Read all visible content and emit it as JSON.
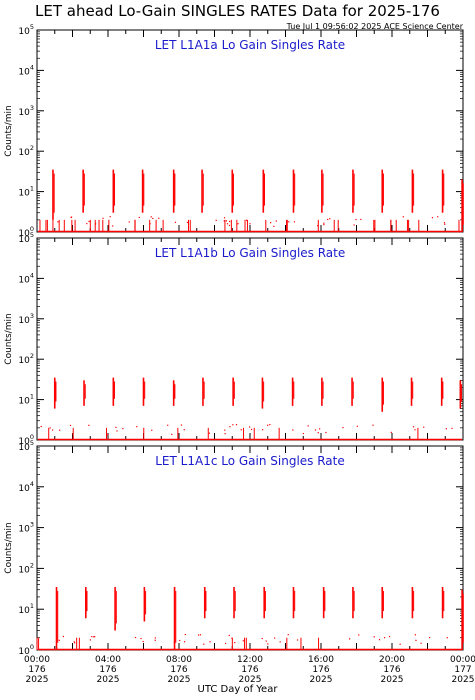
{
  "header": {
    "title": "LET ahead Lo-Gain SINGLES RATES Data for 2025-176",
    "timestamp": "Tue Jul  1 09:56:02 2025 ACE Science Center"
  },
  "x_axis_title": "UTC Day of Year",
  "chart_data": [
    {
      "type": "line",
      "title": "LET L1A1a Lo Gain Singles Rate",
      "ylabel": "Counts/min",
      "yscale": "log",
      "ylim": [
        1,
        100000
      ],
      "yticks": [
        1,
        10,
        100,
        1000,
        10000,
        100000
      ],
      "xlim": [
        0,
        24
      ],
      "x_units": "hours UTC",
      "color": "#ff0000",
      "spikes": [
        {
          "x": 0.9,
          "low": 2,
          "high": 35
        },
        {
          "x": 2.6,
          "low": 3,
          "high": 35
        },
        {
          "x": 4.3,
          "low": 3,
          "high": 35
        },
        {
          "x": 5.95,
          "low": 3,
          "high": 35
        },
        {
          "x": 7.7,
          "low": 3,
          "high": 35
        },
        {
          "x": 9.3,
          "low": 3,
          "high": 35
        },
        {
          "x": 11.0,
          "low": 3,
          "high": 35
        },
        {
          "x": 12.75,
          "low": 3,
          "high": 35
        },
        {
          "x": 14.45,
          "low": 3,
          "high": 35
        },
        {
          "x": 16.05,
          "low": 3,
          "high": 35
        },
        {
          "x": 17.8,
          "low": 3,
          "high": 35
        },
        {
          "x": 19.45,
          "low": 3,
          "high": 35
        },
        {
          "x": 21.15,
          "low": 3,
          "high": 35
        },
        {
          "x": 22.85,
          "low": 3,
          "high": 35
        },
        {
          "x": 23.95,
          "low": 1,
          "high": 20
        }
      ],
      "background_level": 1
    },
    {
      "type": "line",
      "title": "LET L1A1b Lo Gain Singles Rate",
      "ylabel": "Counts/min",
      "yscale": "log",
      "ylim": [
        1,
        100000
      ],
      "yticks": [
        1,
        10,
        100,
        1000,
        10000,
        100000
      ],
      "xlim": [
        0,
        24
      ],
      "x_units": "hours UTC",
      "color": "#ff0000",
      "spikes": [
        {
          "x": 1.0,
          "low": 6,
          "high": 35
        },
        {
          "x": 2.65,
          "low": 7,
          "high": 30
        },
        {
          "x": 4.3,
          "low": 7,
          "high": 35
        },
        {
          "x": 6.0,
          "low": 7,
          "high": 35
        },
        {
          "x": 7.7,
          "low": 7,
          "high": 30
        },
        {
          "x": 9.35,
          "low": 7,
          "high": 35
        },
        {
          "x": 11.05,
          "low": 7,
          "high": 35
        },
        {
          "x": 12.7,
          "low": 6,
          "high": 35
        },
        {
          "x": 14.4,
          "low": 7,
          "high": 35
        },
        {
          "x": 16.05,
          "low": 7,
          "high": 35
        },
        {
          "x": 17.75,
          "low": 7,
          "high": 35
        },
        {
          "x": 19.45,
          "low": 5,
          "high": 35
        },
        {
          "x": 21.1,
          "low": 7,
          "high": 35
        },
        {
          "x": 22.8,
          "low": 7,
          "high": 35
        },
        {
          "x": 23.85,
          "low": 6,
          "high": 30
        }
      ],
      "background_level": 1
    },
    {
      "type": "line",
      "title": "LET L1A1c Lo Gain Singles Rate",
      "ylabel": "Counts/min",
      "yscale": "log",
      "ylim": [
        1,
        100000
      ],
      "yticks": [
        1,
        10,
        100,
        1000,
        10000,
        100000
      ],
      "xlim": [
        0,
        24
      ],
      "x_units": "hours UTC",
      "color": "#ff0000",
      "x_tick_labels": [
        [
          "00:00",
          "176",
          "2025"
        ],
        [
          "04:00",
          "176",
          "2025"
        ],
        [
          "08:00",
          "176",
          "2025"
        ],
        [
          "12:00",
          "176",
          "2025"
        ],
        [
          "16:00",
          "176",
          "2025"
        ],
        [
          "20:00",
          "176",
          "2025"
        ],
        [
          "00:00",
          "177",
          "2025"
        ]
      ],
      "x_tick_positions": [
        0,
        4,
        8,
        12,
        16,
        20,
        24
      ],
      "spikes": [
        {
          "x": 1.1,
          "low": 1,
          "high": 35
        },
        {
          "x": 2.75,
          "low": 6,
          "high": 35
        },
        {
          "x": 4.4,
          "low": 3,
          "high": 35
        },
        {
          "x": 6.05,
          "low": 5,
          "high": 35
        },
        {
          "x": 7.75,
          "low": 1,
          "high": 35
        },
        {
          "x": 9.45,
          "low": 6,
          "high": 35
        },
        {
          "x": 11.1,
          "low": 6,
          "high": 35
        },
        {
          "x": 12.8,
          "low": 6,
          "high": 35
        },
        {
          "x": 14.45,
          "low": 6,
          "high": 35
        },
        {
          "x": 16.15,
          "low": 6,
          "high": 35
        },
        {
          "x": 17.8,
          "low": 6,
          "high": 35
        },
        {
          "x": 19.45,
          "low": 6,
          "high": 35
        },
        {
          "x": 21.15,
          "low": 6,
          "high": 35
        },
        {
          "x": 22.85,
          "low": 6,
          "high": 35
        },
        {
          "x": 23.95,
          "low": 1,
          "high": 30
        }
      ],
      "background_level": 1
    }
  ]
}
